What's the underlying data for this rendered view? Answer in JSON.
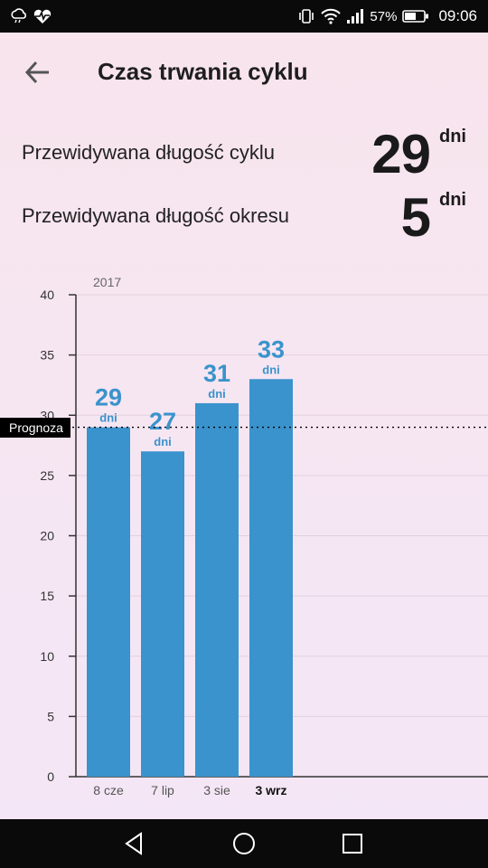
{
  "status_bar": {
    "left_icons": [
      "weather-icon",
      "heart-monitor-icon"
    ],
    "right_icons": [
      "vibrate-icon",
      "wifi-icon",
      "signal-icon"
    ],
    "battery_percent": "57%",
    "time": "09:06"
  },
  "header": {
    "back_icon": "arrow-left-icon",
    "title": "Czas trwania cyklu"
  },
  "summary": {
    "cycle": {
      "label": "Przewidywana długość cyklu",
      "value": "29",
      "unit": "dni"
    },
    "period": {
      "label": "Przewidywana długość okresu",
      "value": "5",
      "unit": "dni"
    }
  },
  "forecast_label": "Prognoza",
  "chart_data": {
    "type": "bar",
    "year_label": "2017",
    "categories": [
      "8 cze",
      "7 lip",
      "3 sie",
      "3 wrz"
    ],
    "values": [
      29,
      27,
      31,
      33
    ],
    "value_unit": "dni",
    "highlighted_category": "3 wrz",
    "ylim": [
      0,
      40
    ],
    "yticks": [
      0,
      5,
      10,
      15,
      20,
      25,
      30,
      35,
      40
    ],
    "forecast_value": 29,
    "grid": true,
    "colors": {
      "bar": "#3a93cc",
      "label": "#3a93cc",
      "forecast_line": "#000000"
    }
  },
  "nav_bar": {
    "items": [
      "back-triangle-icon",
      "home-circle-icon",
      "recents-square-icon"
    ]
  }
}
